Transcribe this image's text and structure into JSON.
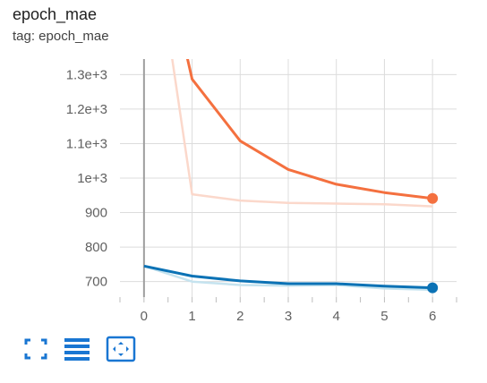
{
  "card": {
    "title": "epoch_mae",
    "tag": "tag: epoch_mae"
  },
  "toolbar": {
    "icons": [
      "fullscreen-icon",
      "toggle-lines-icon",
      "fit-domain-icon"
    ],
    "color": "#1976d2"
  },
  "chart_data": {
    "type": "line",
    "title": "epoch_mae",
    "xlabel": "",
    "ylabel": "",
    "x_ticks": [
      0,
      1,
      2,
      3,
      4,
      5,
      6
    ],
    "y_ticks": [
      700,
      800,
      900,
      1000,
      1100,
      1200,
      1300
    ],
    "y_tick_labels": [
      "700",
      "800",
      "900",
      "1e+3",
      "1.1e+3",
      "1.2e+3",
      "1.3e+3"
    ],
    "xlim": [
      -0.5,
      6.5
    ],
    "ylim": [
      655,
      1345
    ],
    "grid": true,
    "x": [
      0,
      1,
      2,
      3,
      4,
      5,
      6
    ],
    "series": [
      {
        "color": "#f4703f",
        "raw_color": "#fbd8cb",
        "smoothed": [
          1900,
          1287,
          1108,
          1025,
          982,
          958,
          941
        ],
        "raw": [
          1900,
          953,
          935,
          928,
          926,
          924,
          918
        ]
      },
      {
        "color": "#0b72b5",
        "raw_color": "#c5e3ef",
        "smoothed": [
          745,
          716,
          702,
          694,
          694,
          687,
          682
        ],
        "raw": [
          745,
          700,
          690,
          688,
          690,
          680,
          676
        ]
      }
    ]
  }
}
